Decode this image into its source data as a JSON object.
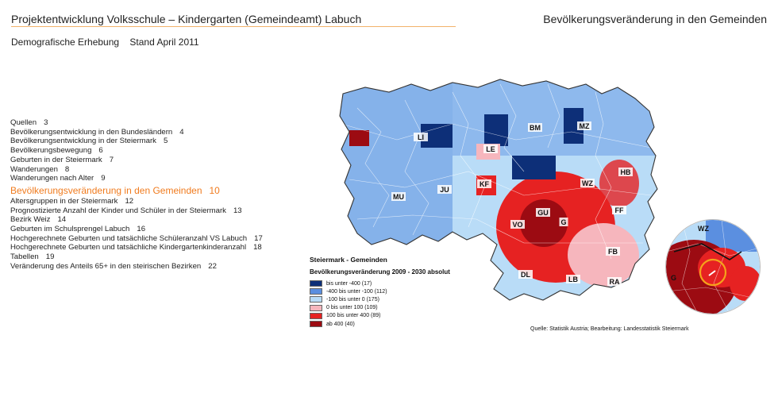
{
  "header": {
    "left_title": "Projektentwicklung  Volksschule – Kindergarten  (Gemeindeamt) Labuch",
    "right_title": "Bevölkerungsveränderung in den Gemeinden",
    "accent_color": "#f2b26b"
  },
  "subtitle": {
    "survey": "Demografische Erhebung",
    "date": "Stand April 2011"
  },
  "toc": {
    "active_color": "#f07b1e",
    "items": [
      {
        "label": "Quellen",
        "page": "3"
      },
      {
        "label": "Bevölkerungsentwicklung in den Bundesländern",
        "page": "4"
      },
      {
        "label": "Bevölkerungsentwicklung in der Steiermark",
        "page": "5"
      },
      {
        "label": "Bevölkerungsbewegung",
        "page": "6"
      },
      {
        "label": "Geburten in der Steiermark",
        "page": "7"
      },
      {
        "label": "Wanderungen",
        "page": "8"
      },
      {
        "label": "Wanderungen nach Alter",
        "page": "9"
      },
      {
        "label": "Bevölkerungsveränderung in den Gemeinden",
        "page": "10"
      },
      {
        "label": "Altersgruppen in der Steiermark",
        "page": "12"
      },
      {
        "label": "Prognostizierte Anzahl der Kinder und Schüler in der Steiermark",
        "page": "13"
      },
      {
        "label": "Bezirk Weiz",
        "page": "14"
      },
      {
        "label": "Geburten im Schulsprengel Labuch",
        "page": "16"
      },
      {
        "label": "Hochgerechnete Geburten und tatsächliche Schüleranzahl VS Labuch",
        "page": "17"
      },
      {
        "label": "Hochgerechnete Geburten und tatsächliche Kindergartenkinderanzahl",
        "page": "18"
      },
      {
        "label": "Tabellen",
        "page": "19"
      },
      {
        "label": "Veränderung des Anteils 65+ in den steirischen Bezirken",
        "page": "22"
      }
    ]
  },
  "map": {
    "district_labels": [
      "LI",
      "BM",
      "MZ",
      "LE",
      "HB",
      "KF",
      "WZ",
      "MU",
      "JU",
      "GU",
      "G",
      "FF",
      "VO",
      "FB",
      "DL",
      "LB",
      "RA"
    ],
    "magnifier_labels": [
      "WZ",
      "G"
    ],
    "highlight_color": "#f5a21b"
  },
  "legend": {
    "title": "Steiermark - Gemeinden",
    "subtitle": "Bevölkerungsveränderung 2009 - 2030 absolut",
    "classes": [
      {
        "label": "bis unter -400 (17)",
        "color": "#0d2f78"
      },
      {
        "label": "-400 bis unter -100 (112)",
        "color": "#5b8fe0"
      },
      {
        "label": "-100 bis unter 0 (175)",
        "color": "#b9dcf7"
      },
      {
        "label": "0 bis unter 100 (109)",
        "color": "#f6b6bd"
      },
      {
        "label": "100 bis unter 400 (89)",
        "color": "#e62222"
      },
      {
        "label": "ab 400 (40)",
        "color": "#9c0b12"
      }
    ]
  },
  "source": "Quelle: Statistik Austria; Bearbeitung: Landesstatistik Steiermark"
}
